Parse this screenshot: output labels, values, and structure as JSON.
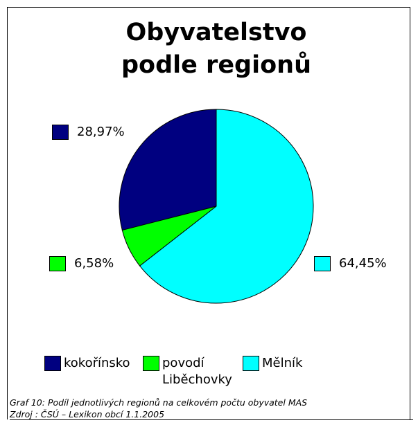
{
  "chart_data": {
    "type": "pie",
    "title": "Obyvatelstvo podle regionů",
    "categories": [
      "kokořínsko",
      "povodí Liběchovky",
      "Mělník"
    ],
    "values": [
      28.97,
      6.58,
      64.45
    ],
    "value_labels": [
      "28,97%",
      "6,58%",
      "64,45%"
    ],
    "colors": [
      "#000080",
      "#00ff00",
      "#00ffff"
    ],
    "legend": "bottom"
  },
  "caption": [
    "Graf 10: Podíl jednotlivých regionů na celkovém počtu obyvatel MAS",
    "Zdroj : ČSÚ – Lexikon obcí 1.1.2005"
  ]
}
